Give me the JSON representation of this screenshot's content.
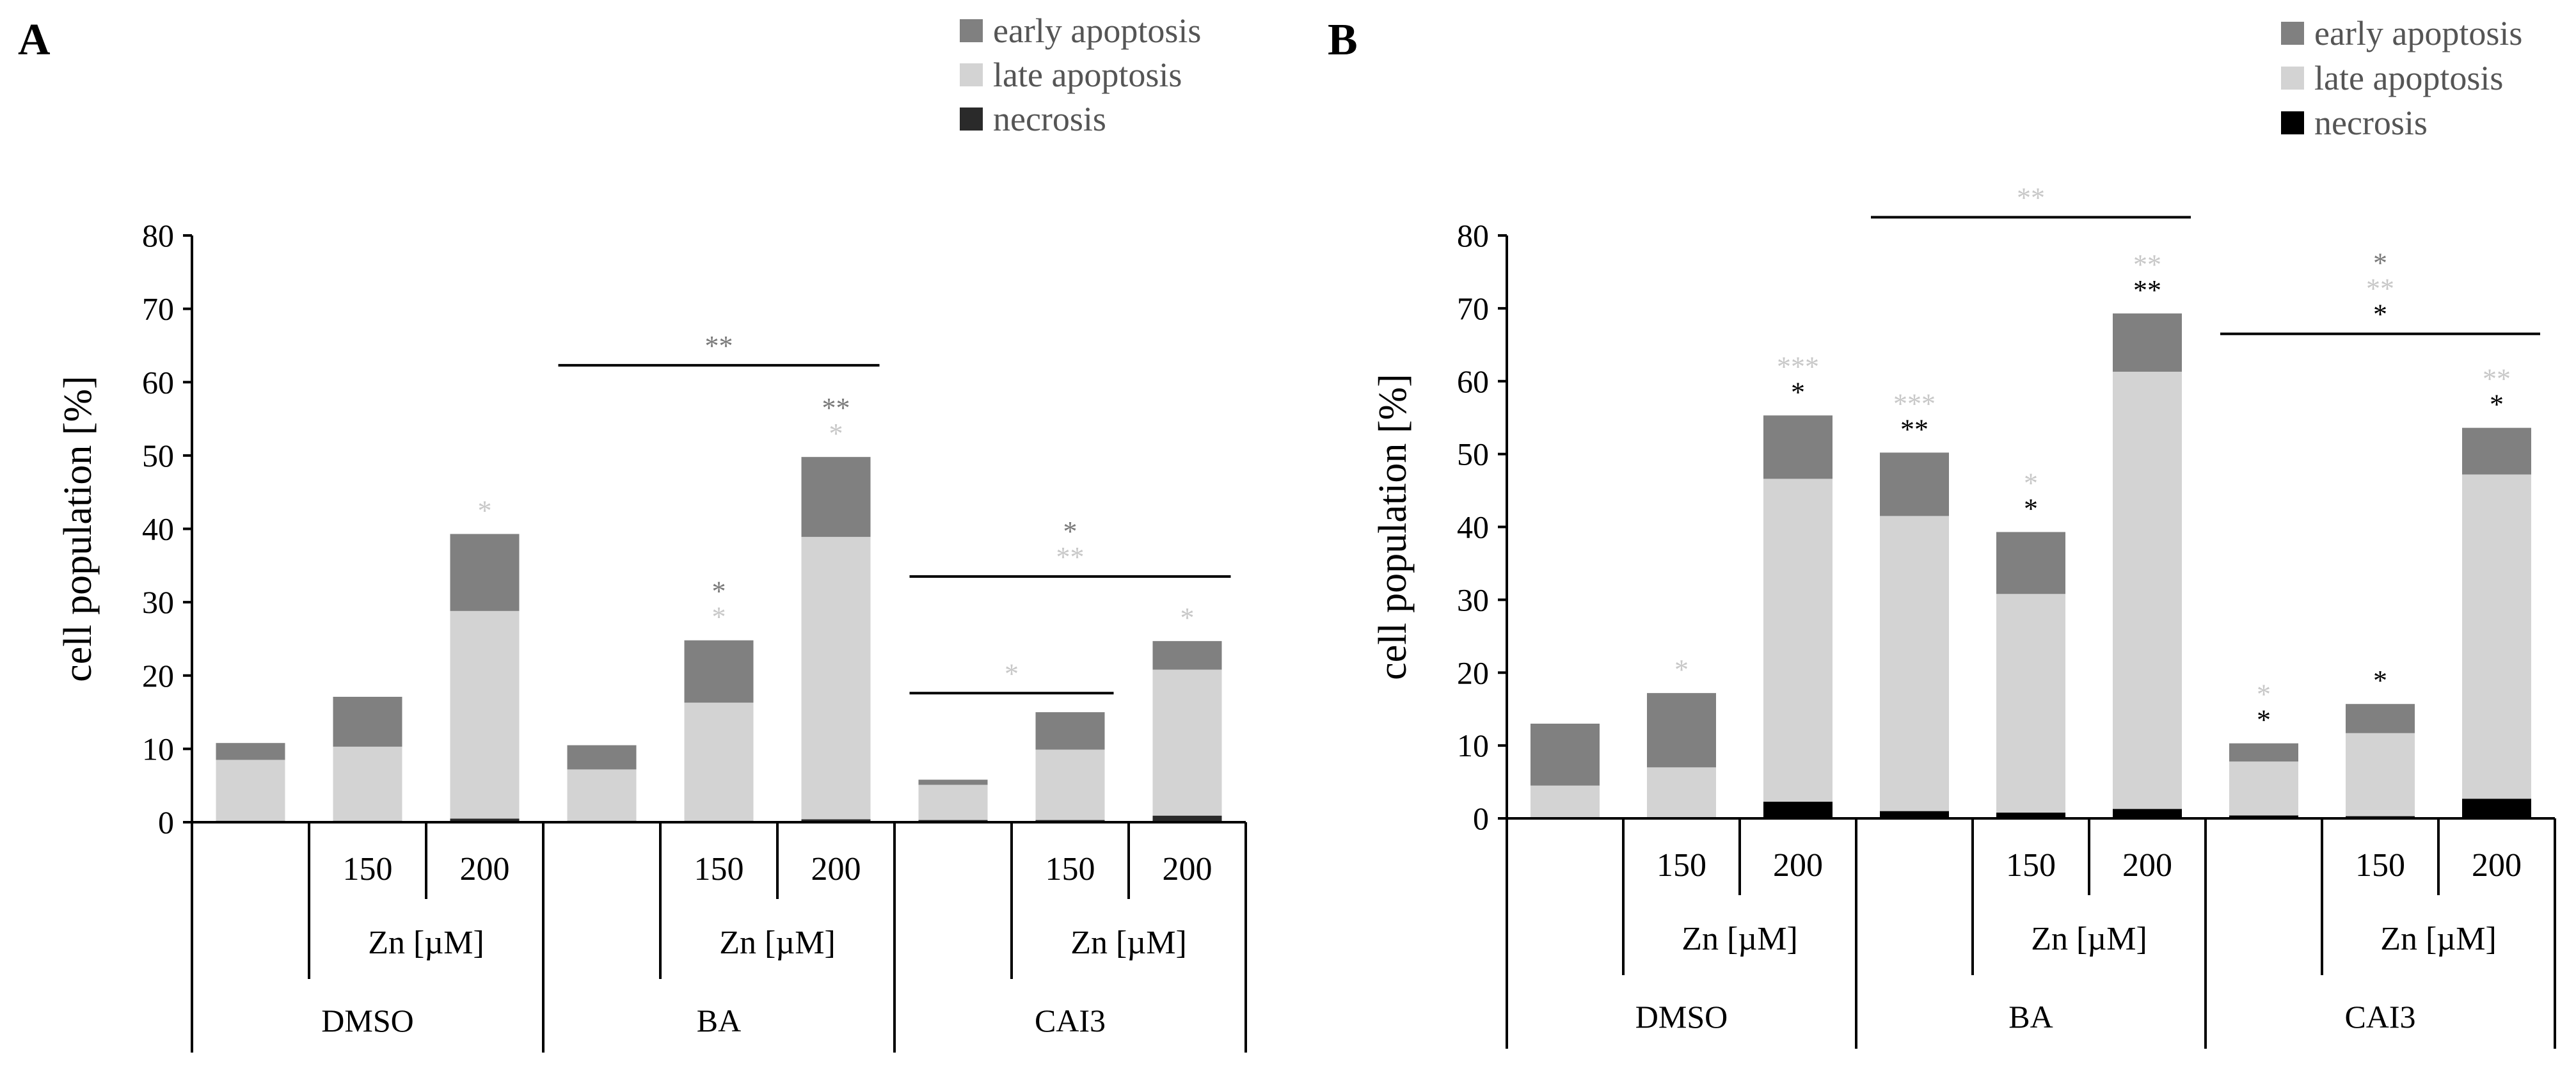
{
  "colors": {
    "early": "#808080",
    "late": "#d3d3d3",
    "necrosis_a": "#2a2a2a",
    "necrosis_b": "#000000",
    "axis": "#000000",
    "star_dark": "#7a7a7a",
    "star_light": "#c8c8c8",
    "star_black": "#000000"
  },
  "chart_data": [
    {
      "panel_label": "A",
      "type": "bar",
      "stacked": true,
      "ylabel": "cell population [%]",
      "ylim": [
        0,
        80
      ],
      "yticks": [
        "0",
        "10",
        "20",
        "30",
        "40",
        "50",
        "60",
        "70",
        "80"
      ],
      "legend": [
        "early apoptosis",
        "late apoptosis",
        "necrosis"
      ],
      "zn_label": "Zn [µM]",
      "groups": [
        {
          "name": "DMSO",
          "doses": [
            "",
            "150",
            "200"
          ]
        },
        {
          "name": "BA",
          "doses": [
            "",
            "150",
            "200"
          ]
        },
        {
          "name": "CAI3",
          "doses": [
            "",
            "150",
            "200"
          ]
        }
      ],
      "series": [
        {
          "name": "necrosis",
          "values": [
            0.2,
            0.2,
            0.5,
            0.2,
            0.2,
            0.4,
            0.3,
            0.3,
            0.9
          ]
        },
        {
          "name": "late apoptosis",
          "values": [
            8.3,
            10.1,
            28.3,
            7.0,
            16.1,
            38.5,
            4.8,
            9.6,
            19.9
          ]
        },
        {
          "name": "early apoptosis",
          "values": [
            2.3,
            6.8,
            10.5,
            3.3,
            8.5,
            10.9,
            0.7,
            5.1,
            3.9
          ]
        }
      ],
      "bar_stars": [
        [],
        [],
        [
          {
            "t": "*",
            "c": "light"
          }
        ],
        [],
        [
          {
            "t": "*",
            "c": "dark"
          },
          {
            "t": "*",
            "c": "light"
          }
        ],
        [
          {
            "t": "**",
            "c": "dark"
          },
          {
            "t": "*",
            "c": "light"
          }
        ],
        [],
        [],
        [
          {
            "t": "*",
            "c": "light"
          }
        ]
      ],
      "brackets": [
        {
          "from": 3,
          "to": 5,
          "y": 62.3,
          "stars": [
            {
              "t": "**",
              "c": "dark"
            }
          ]
        },
        {
          "from": 6,
          "to": 8,
          "y": 33.5,
          "stars": [
            {
              "t": "*",
              "c": "dark"
            },
            {
              "t": "**",
              "c": "light"
            }
          ]
        },
        {
          "from": 6,
          "to": 7,
          "y": 17.6,
          "stars": [
            {
              "t": "*",
              "c": "light"
            }
          ]
        }
      ]
    },
    {
      "panel_label": "B",
      "type": "bar",
      "stacked": true,
      "ylabel": "cell population [%]",
      "ylim": [
        0,
        80
      ],
      "yticks": [
        "0",
        "10",
        "20",
        "30",
        "40",
        "50",
        "60",
        "70",
        "80"
      ],
      "legend": [
        "early apoptosis",
        "late apoptosis",
        "necrosis"
      ],
      "zn_label": "Zn [µM]",
      "groups": [
        {
          "name": "DMSO",
          "doses": [
            "",
            "150",
            "200"
          ]
        },
        {
          "name": "BA",
          "doses": [
            "",
            "150",
            "200"
          ]
        },
        {
          "name": "CAI3",
          "doses": [
            "",
            "150",
            "200"
          ]
        }
      ],
      "series": [
        {
          "name": "necrosis",
          "values": [
            0.1,
            0.1,
            2.3,
            1.0,
            0.8,
            1.3,
            0.4,
            0.3,
            2.7
          ]
        },
        {
          "name": "late apoptosis",
          "values": [
            4.4,
            6.9,
            44.3,
            40.5,
            30.0,
            60.0,
            7.4,
            11.4,
            44.5
          ]
        },
        {
          "name": "early apoptosis",
          "values": [
            8.5,
            10.2,
            8.7,
            8.7,
            8.5,
            8.0,
            2.5,
            4.0,
            6.4
          ]
        }
      ],
      "bar_stars": [
        [],
        [
          {
            "t": "*",
            "c": "light"
          }
        ],
        [
          {
            "t": "***",
            "c": "light"
          },
          {
            "t": "*",
            "c": "black"
          }
        ],
        [
          {
            "t": "***",
            "c": "light"
          },
          {
            "t": "**",
            "c": "black"
          }
        ],
        [
          {
            "t": "*",
            "c": "light"
          },
          {
            "t": "*",
            "c": "black"
          }
        ],
        [
          {
            "t": "**",
            "c": "light"
          },
          {
            "t": "**",
            "c": "black"
          }
        ],
        [
          {
            "t": "*",
            "c": "light"
          },
          {
            "t": "*",
            "c": "black"
          }
        ],
        [
          {
            "t": "*",
            "c": "black"
          }
        ],
        [
          {
            "t": "**",
            "c": "light"
          },
          {
            "t": "*",
            "c": "black"
          }
        ]
      ],
      "brackets": [
        {
          "from": 3,
          "to": 5,
          "y": 82.5,
          "stars": [
            {
              "t": "**",
              "c": "light"
            }
          ]
        },
        {
          "from": 6,
          "to": 8,
          "y": 66.5,
          "stars": [
            {
              "t": "*",
              "c": "dark"
            },
            {
              "t": "**",
              "c": "light"
            },
            {
              "t": "*",
              "c": "black"
            }
          ]
        }
      ]
    }
  ]
}
